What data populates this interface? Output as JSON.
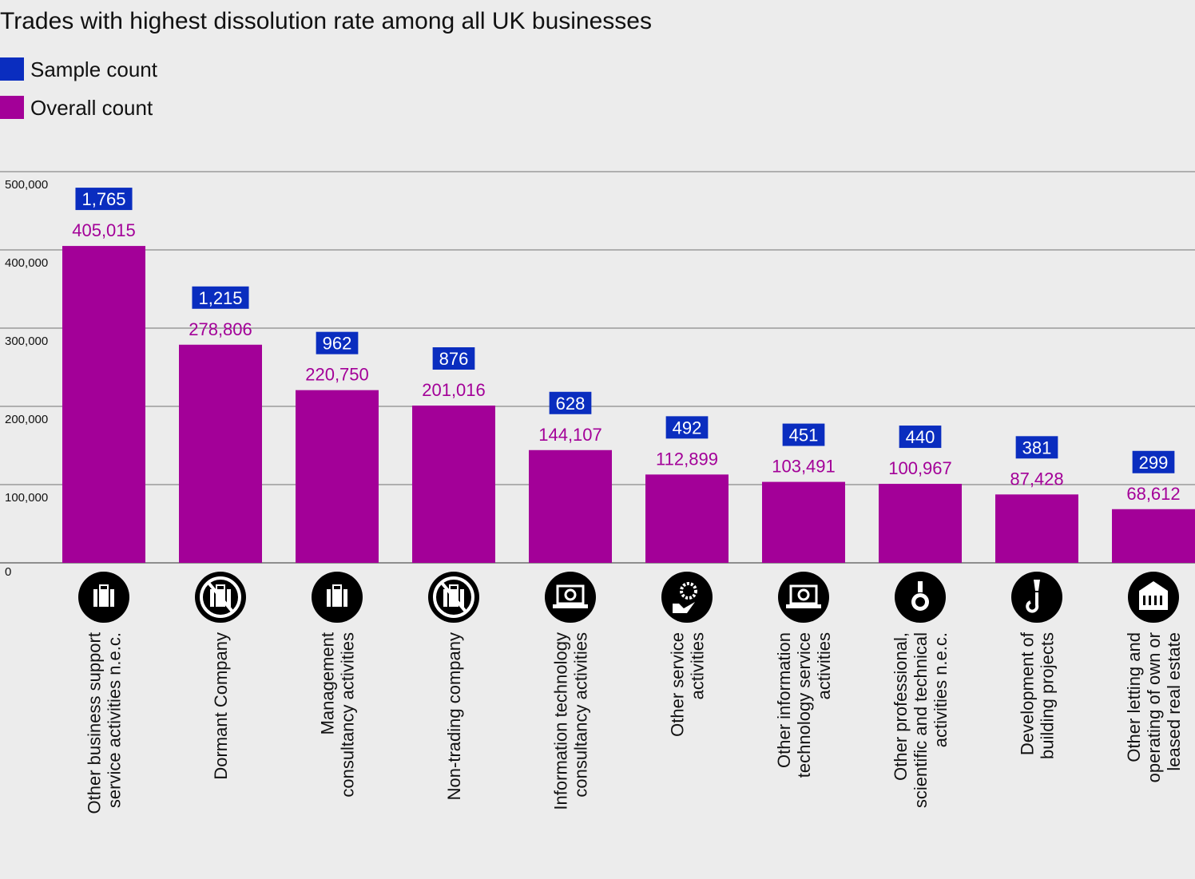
{
  "chart_data": {
    "type": "bar",
    "title": "Trades with highest dissolution rate among all UK businesses",
    "legend_position": "top-left",
    "grid": true,
    "ylim": [
      0,
      500000
    ],
    "yticks": [
      "0",
      "100,000",
      "200,000",
      "300,000",
      "400,000",
      "500,000"
    ],
    "ytick_values": [
      0,
      100000,
      200000,
      300000,
      400000,
      500000
    ],
    "colors": {
      "sample": "#0a2dbf",
      "overall": "#a30098",
      "background": "#ececec",
      "grid": "#8a8a8a"
    },
    "categories": [
      [
        "Other business support",
        "service activities n.e.c."
      ],
      [
        "Dormant Company"
      ],
      [
        "Management",
        "consultancy activities"
      ],
      [
        "Non-trading company"
      ],
      [
        "Information technology",
        "consultancy activities"
      ],
      [
        "Other service",
        "activities"
      ],
      [
        "Other information",
        "technology service",
        "activities"
      ],
      [
        "Other professional,",
        "scientific and technical",
        "activities n.e.c."
      ],
      [
        "Development of",
        "building projects"
      ],
      [
        "Other letting and",
        "operating of own or",
        "leased real estate"
      ]
    ],
    "icons": [
      "briefcase-icon",
      "no-briefcase-icon",
      "briefcase-icon",
      "no-briefcase-icon",
      "laptop-gear-icon",
      "hand-gear-icon",
      "laptop-gear-icon",
      "flask-icon",
      "crane-hook-icon",
      "building-icon"
    ],
    "series": [
      {
        "name": "Sample count",
        "values": [
          1765,
          1215,
          962,
          876,
          628,
          492,
          451,
          440,
          381,
          299
        ],
        "labels": [
          "1,765",
          "1,215",
          "962",
          "876",
          "628",
          "492",
          "451",
          "440",
          "381",
          "299"
        ]
      },
      {
        "name": "Overall count",
        "values": [
          405015,
          278806,
          220750,
          201016,
          144107,
          112899,
          103491,
          100967,
          87428,
          68612
        ],
        "labels": [
          "405,015",
          "278,806",
          "220,750",
          "201,016",
          "144,107",
          "112,899",
          "103,491",
          "100,967",
          "87,428",
          "68,612"
        ]
      }
    ]
  }
}
